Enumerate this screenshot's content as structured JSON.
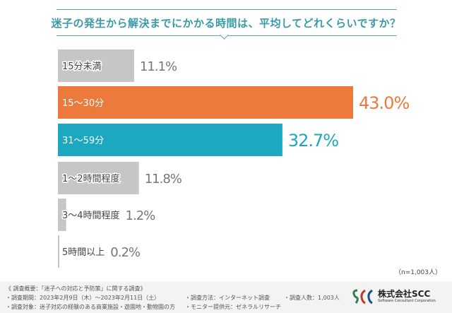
{
  "title": "迷子の発生から解決までにかかる時間は、平均してどれくらいですか？",
  "chart_data": {
    "type": "bar",
    "orientation": "horizontal",
    "categories": [
      "15分未満",
      "15～30分",
      "31～59分",
      "1～2時間程度",
      "3～4時間程度",
      "5時間以上"
    ],
    "values": [
      11.1,
      43.0,
      32.7,
      11.8,
      1.2,
      0.2
    ],
    "value_labels": [
      "11.1%",
      "43.0%",
      "32.7%",
      "11.8%",
      "1.2%",
      "0.2%"
    ],
    "colors": [
      "#c6c6c6",
      "#eb7a3c",
      "#1ba8c0",
      "#c6c6c6",
      "#c6c6c6",
      "#c6c6c6"
    ],
    "label_colors": [
      "#777777",
      "#eb7a3c",
      "#1ba8c0",
      "#777777",
      "#777777",
      "#777777"
    ],
    "grid": false,
    "xlim": [
      0,
      45
    ]
  },
  "sample": "（n=1,003人）",
  "footer": {
    "summary": "《 調査概要：「迷子への対応と予防策」に関する調査》",
    "period": "・調査期間：2023年2月9日（木）～2023年2月11日（土）",
    "target": "・調査対象：迷子対応の経験のある商業施設・遊園地・動物園の方",
    "method": "・調査方法：インターネット調査",
    "provider": "・モニター提供元：ゼネラルリサーチ",
    "count": "・調査人数：1,003人"
  },
  "company": {
    "name": "株式会社SCC",
    "sub": "Software Consultant Corporation"
  }
}
